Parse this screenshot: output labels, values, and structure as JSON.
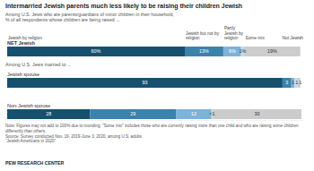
{
  "chart_data": {
    "type": "bar",
    "orientation": "horizontal",
    "stacked": true,
    "data_labels": true,
    "tick_labels": false,
    "title": "Intermarried Jewish parents much less likely to be raising their children Jewish",
    "subtitle": [
      "Among U.S. Jews who are parents/guardians of minor children in their household,",
      "% of all respondents whose children are being raised ..."
    ],
    "annotation": "Among U.S. Jews married to ...",
    "categories": [
      "NET Jewish",
      "Jewish spouse",
      "Non-Jewish spouse"
    ],
    "xlim": [
      0,
      100
    ],
    "series": [
      {
        "name": "Jewish by religion",
        "color": "#17506f",
        "values": [
          60,
          93,
          28
        ],
        "value_labels": [
          "60%",
          "93",
          "28"
        ]
      },
      {
        "name": "Jewish but not by religion",
        "color": "#3b82ad",
        "values": [
          13,
          3,
          29
        ],
        "value_labels": [
          "13%",
          "3",
          "29"
        ]
      },
      {
        "name": "Partly Jewish by religion",
        "color": "#7eb3d8",
        "values": [
          6,
          1,
          12
        ],
        "value_labels": [
          "6%",
          "1",
          "12"
        ]
      },
      {
        "name": "Some mix",
        "color": "#c3dbee",
        "values": [
          1,
          1,
          0.4
        ],
        "value_labels": [
          "1%",
          "1",
          "<1"
        ]
      },
      {
        "name": "Not Jewish",
        "color": "#cccccc",
        "values": [
          19,
          1,
          30
        ],
        "value_labels": [
          "19%",
          "1",
          "30"
        ]
      }
    ],
    "note": "Note: Figures may not add to 100% due to rounding. \"Some mix\" includes those who are currently raising more than one child and who are raising some children differently than others.",
    "source": "Source: Survey conducted Nov. 19, 2019-June 3, 2020, among U.S. adults.",
    "report": "“Jewish Americans in 2020”",
    "credit": "PEW RESEARCH CENTER"
  }
}
